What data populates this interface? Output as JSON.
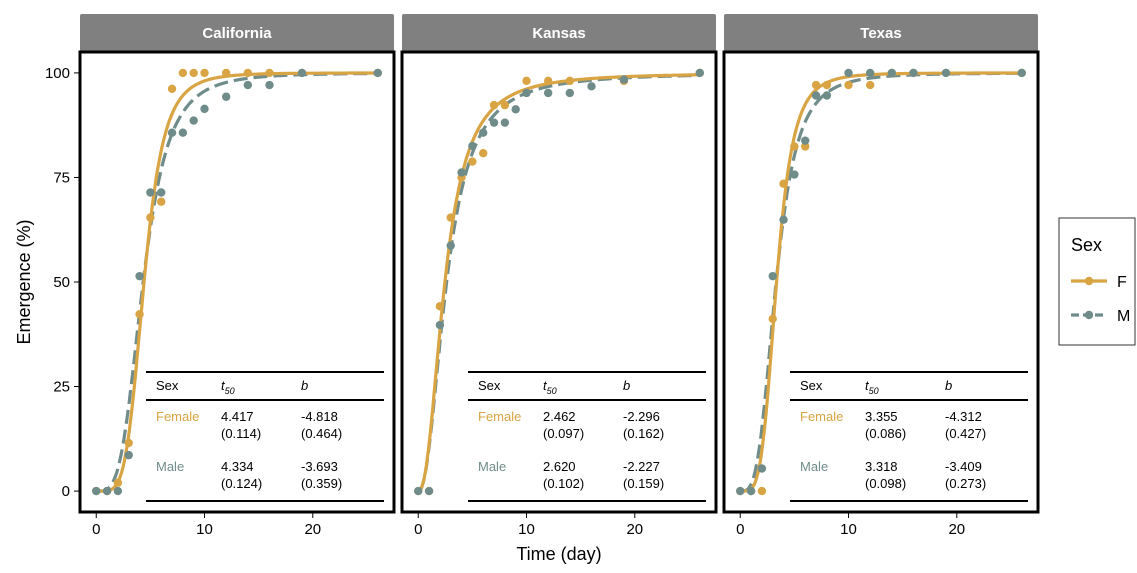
{
  "chart_data": {
    "type": "line",
    "xlabel": "Time (day)",
    "ylabel": "Emergence (%)",
    "xlim": [
      -1.5,
      27.5
    ],
    "ylim": [
      -5,
      105
    ],
    "x_ticks": [
      0,
      10,
      20
    ],
    "y_ticks": [
      0,
      25,
      50,
      75,
      100
    ],
    "grid": false,
    "legend": {
      "title": "Sex",
      "placement": "right",
      "entries": [
        {
          "label": "F",
          "color": "#D9A443",
          "linestyle": "solid"
        },
        {
          "label": "M",
          "color": "#6F8C8A",
          "linestyle": "dashed"
        }
      ]
    },
    "panels": [
      {
        "title": "California",
        "series": [
          {
            "name": "F",
            "color": "#D9A443",
            "t50": 4.417,
            "b": -4.818,
            "points": [
              [
                0,
                0
              ],
              [
                1,
                0
              ],
              [
                2,
                2
              ],
              [
                3,
                11.5
              ],
              [
                4,
                42.3
              ],
              [
                5,
                65.4
              ],
              [
                6,
                69.2
              ],
              [
                7,
                96.2
              ],
              [
                8,
                100
              ],
              [
                9,
                100
              ],
              [
                10,
                100
              ],
              [
                12,
                100
              ],
              [
                14,
                100
              ],
              [
                16,
                100
              ],
              [
                19,
                100
              ],
              [
                26,
                100
              ]
            ]
          },
          {
            "name": "M",
            "color": "#6F8C8A",
            "t50": 4.334,
            "b": -3.693,
            "points": [
              [
                0,
                0
              ],
              [
                1,
                0
              ],
              [
                2,
                0
              ],
              [
                3,
                8.6
              ],
              [
                4,
                51.4
              ],
              [
                5,
                71.4
              ],
              [
                6,
                71.4
              ],
              [
                7,
                85.7
              ],
              [
                8,
                85.7
              ],
              [
                9,
                88.6
              ],
              [
                10,
                91.4
              ],
              [
                12,
                94.3
              ],
              [
                14,
                97.1
              ],
              [
                16,
                97.1
              ],
              [
                19,
                100
              ],
              [
                26,
                100
              ]
            ]
          }
        ],
        "table": {
          "headers": [
            "Sex",
            "t50",
            "b"
          ],
          "rows": [
            {
              "label": "Female",
              "t50": "4.417",
              "t50_se": "(0.114)",
              "b": "-4.818",
              "b_se": "(0.464)"
            },
            {
              "label": "Male",
              "t50": "4.334",
              "t50_se": "(0.124)",
              "b": "-3.693",
              "b_se": "(0.359)"
            }
          ]
        }
      },
      {
        "title": "Kansas",
        "series": [
          {
            "name": "F",
            "color": "#D9A443",
            "t50": 2.462,
            "b": -2.296,
            "points": [
              [
                0,
                0
              ],
              [
                1,
                0
              ],
              [
                2,
                44.2
              ],
              [
                3,
                65.4
              ],
              [
                4,
                75
              ],
              [
                5,
                78.8
              ],
              [
                6,
                80.8
              ],
              [
                7,
                92.3
              ],
              [
                8,
                92.3
              ],
              [
                10,
                98.1
              ],
              [
                12,
                98.1
              ],
              [
                14,
                98.1
              ],
              [
                19,
                98.1
              ],
              [
                26,
                100
              ]
            ]
          },
          {
            "name": "M",
            "color": "#6F8C8A",
            "t50": 2.62,
            "b": -2.227,
            "points": [
              [
                0,
                0
              ],
              [
                1,
                0
              ],
              [
                2,
                39.7
              ],
              [
                3,
                58.7
              ],
              [
                4,
                76.2
              ],
              [
                5,
                82.5
              ],
              [
                6,
                85.7
              ],
              [
                7,
                88.1
              ],
              [
                8,
                88.1
              ],
              [
                9,
                91.3
              ],
              [
                10,
                95.2
              ],
              [
                12,
                95.2
              ],
              [
                14,
                95.2
              ],
              [
                16,
                96.8
              ],
              [
                19,
                98.4
              ],
              [
                26,
                100
              ]
            ]
          }
        ],
        "table": {
          "headers": [
            "Sex",
            "t50",
            "b"
          ],
          "rows": [
            {
              "label": "Female",
              "t50": "2.462",
              "t50_se": "(0.097)",
              "b": "-2.296",
              "b_se": "(0.162)"
            },
            {
              "label": "Male",
              "t50": "2.620",
              "t50_se": "(0.102)",
              "b": "-2.227",
              "b_se": "(0.159)"
            }
          ]
        }
      },
      {
        "title": "Texas",
        "series": [
          {
            "name": "F",
            "color": "#D9A443",
            "t50": 3.355,
            "b": -4.312,
            "points": [
              [
                0,
                0
              ],
              [
                1,
                0
              ],
              [
                2,
                0
              ],
              [
                3,
                41.2
              ],
              [
                4,
                73.5
              ],
              [
                5,
                82.4
              ],
              [
                6,
                82.4
              ],
              [
                7,
                97.1
              ],
              [
                8,
                97.1
              ],
              [
                10,
                97.1
              ],
              [
                12,
                97.1
              ],
              [
                14,
                100
              ],
              [
                16,
                100
              ],
              [
                19,
                100
              ],
              [
                26,
                100
              ]
            ]
          },
          {
            "name": "M",
            "color": "#6F8C8A",
            "t50": 3.318,
            "b": -3.409,
            "points": [
              [
                0,
                0
              ],
              [
                1,
                0
              ],
              [
                2,
                5.4
              ],
              [
                3,
                51.4
              ],
              [
                4,
                64.9
              ],
              [
                5,
                75.7
              ],
              [
                6,
                83.8
              ],
              [
                7,
                94.6
              ],
              [
                8,
                94.6
              ],
              [
                10,
                100
              ],
              [
                12,
                100
              ],
              [
                14,
                100
              ],
              [
                16,
                100
              ],
              [
                19,
                100
              ],
              [
                26,
                100
              ]
            ]
          }
        ],
        "table": {
          "headers": [
            "Sex",
            "t50",
            "b"
          ],
          "rows": [
            {
              "label": "Female",
              "t50": "3.355",
              "t50_se": "(0.086)",
              "b": "-4.312",
              "b_se": "(0.427)"
            },
            {
              "label": "Male",
              "t50": "3.318",
              "t50_se": "(0.098)",
              "b": "-3.409",
              "b_se": "(0.273)"
            }
          ]
        }
      }
    ]
  }
}
